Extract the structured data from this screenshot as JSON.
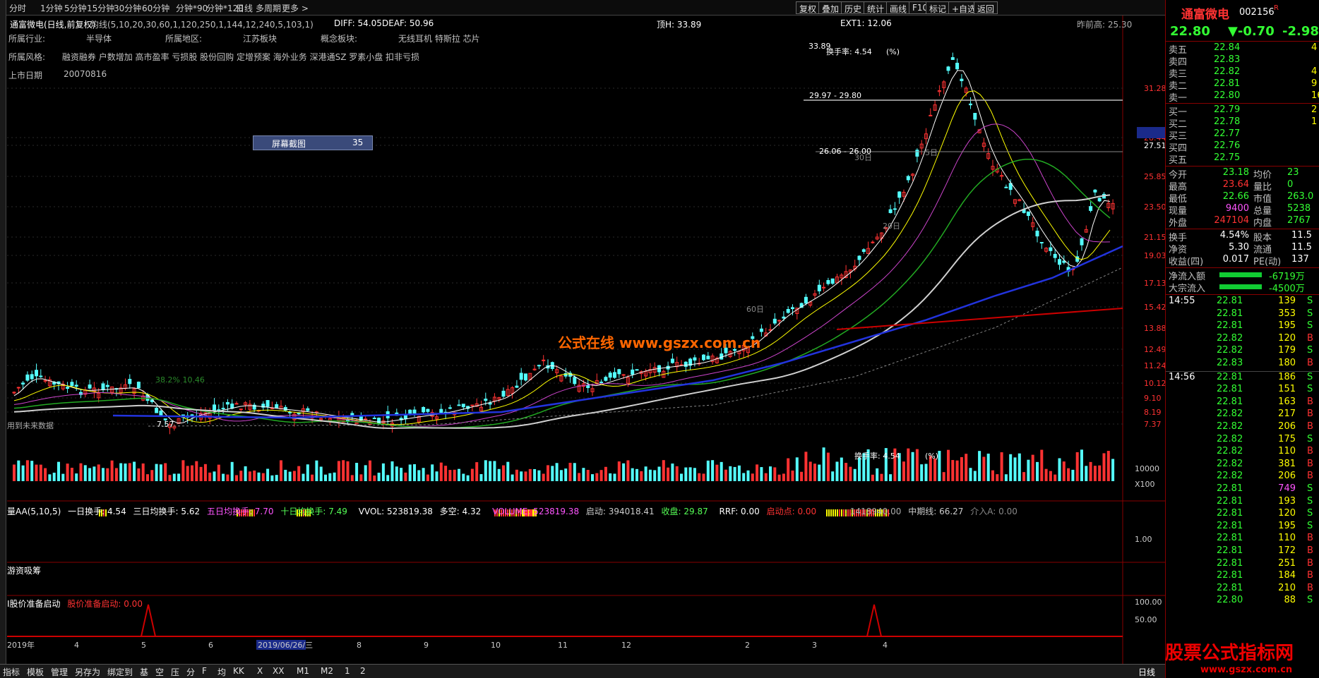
{
  "toolbar": {
    "periods": [
      "分时",
      "1分钟",
      "5分钟",
      "15分钟",
      "30分钟",
      "60分钟",
      "分钟*90",
      "分钟*120",
      "日线",
      "多周期",
      "更多 >"
    ],
    "buttons": [
      "复权",
      "叠加",
      "历史",
      "统计",
      "画线",
      "F10",
      "标记",
      "+自选",
      "返回"
    ]
  },
  "header": {
    "stock_title": "通富微电(日线,前复权)",
    "ma_label": "均线(5,10,20,30,60,1,120,250,1,144,12,240,5,103,1)",
    "diff": "DIFF: 54.05",
    "deaf": "DEAF: 50.96",
    "top_h": "顶H: 33.89",
    "ext1": "EXT1: 12.06",
    "prev_high": "昨前高: 25.30"
  },
  "info": {
    "industry_label": "所属行业:",
    "industry": "半导体",
    "region_label": "所属地区:",
    "region": "江苏板块",
    "concept_label": "概念板块:",
    "concept": "无线耳机 特斯拉 芯片",
    "style_label": "所属风格:",
    "style": "融资融券 户数增加 高市盈率 亏损股 股份回购 定增预案 海外业务 深港通SZ 罗素小盘 扣非亏损",
    "listing_label": "上市日期",
    "listing": "20070816"
  },
  "popup": {
    "label": "屏幕截图",
    "value": "35"
  },
  "watermark": "公式在线  www.gszx.com.cn",
  "price_axis": [
    "31.28",
    "28.44",
    "27.51",
    "25.85",
    "23.50",
    "21.15",
    "19.03",
    "17.13",
    "15.42",
    "13.88",
    "12.49",
    "11.24",
    "10.12",
    "9.10",
    "8.19",
    "7.37"
  ],
  "annotations": {
    "peak": "33.89",
    "turnover": "换手率: 4.54",
    "range1": "29.97 - 29.80",
    "range2": "26.06 - 26.00",
    "low": "7.57",
    "pct": "38.2%  10.46",
    "future": "用到未来数据",
    "d5": "5日",
    "d30": "30日",
    "d60": "60日",
    "d20": "20日"
  },
  "vol_section": {
    "title": "量AA(5,10,5)",
    "one_day": "一日换手: 4.54",
    "three_day": "三日均换手: 5.62",
    "five_day": "五日均换手: 7.70",
    "ten_day": "十日均换手: 7.49",
    "vvol": "VVOL: 523819.38",
    "duokong": "多空: 4.32",
    "volume": "VOLUME: 523819.38",
    "qidong": "启动: 394018.41",
    "shoupan": "收盘: 29.87",
    "rrf": "RRF: 0.00",
    "qidongdian": "启动点: 0.00",
    "axis": [
      "10000",
      "X100"
    ],
    "mid_line": "中期线: 66.27",
    "jieru": "介入A: 0.00",
    "val": ": 1418940.00",
    "turnover": "换手率: 4.54",
    "pct": "(%)"
  },
  "youzi": {
    "title": "游资吸筹",
    "axis": "1.00"
  },
  "prep": {
    "title": "I股价准备启动",
    "sub": "股价准备启动: 0.00",
    "axis": [
      "100.00",
      "50.00"
    ]
  },
  "xaxis": [
    "2019年",
    "4",
    "5",
    "6",
    "2019/06/26/三",
    "8",
    "9",
    "10",
    "11",
    "12",
    "2",
    "3",
    "4"
  ],
  "statusbar": [
    "指标",
    "模板",
    "管理",
    "另存为",
    "绑定到",
    "基",
    "空",
    "压",
    "分",
    "F",
    "均",
    "KK",
    "X",
    "XX",
    "M1",
    "M2",
    "1",
    "2"
  ],
  "daily_label": "日线",
  "right_panel": {
    "name": "通富微电",
    "code": "002156",
    "flag": "R",
    "price": "22.80",
    "change": "▼-0.70",
    "pct": "-2.98",
    "asks": [
      {
        "label": "卖五",
        "price": "22.84",
        "vol": "4"
      },
      {
        "label": "卖四",
        "price": "22.83",
        "vol": ""
      },
      {
        "label": "卖三",
        "price": "22.82",
        "vol": "4"
      },
      {
        "label": "卖二",
        "price": "22.81",
        "vol": "9"
      },
      {
        "label": "卖一",
        "price": "22.80",
        "vol": "16"
      }
    ],
    "bids": [
      {
        "label": "买一",
        "price": "22.79",
        "vol": "2"
      },
      {
        "label": "买二",
        "price": "22.78",
        "vol": "1"
      },
      {
        "label": "买三",
        "price": "22.77",
        "vol": ""
      },
      {
        "label": "买四",
        "price": "22.76",
        "vol": ""
      },
      {
        "label": "买五",
        "price": "22.75",
        "vol": ""
      }
    ],
    "stats": [
      {
        "l1": "今开",
        "v1": "23.18",
        "l2": "均价",
        "v2": "23"
      },
      {
        "l1": "最高",
        "v1": "23.64",
        "l2": "量比",
        "v2": "0"
      },
      {
        "l1": "最低",
        "v1": "22.66",
        "l2": "市值",
        "v2": "263.0"
      },
      {
        "l1": "现量",
        "v1": "9400",
        "l2": "总量",
        "v2": "5238"
      },
      {
        "l1": "外盘",
        "v1": "247104",
        "l2": "内盘",
        "v2": "2767"
      }
    ],
    "stats2": [
      {
        "l1": "换手",
        "v1": "4.54%",
        "l2": "股本",
        "v2": "11.5"
      },
      {
        "l1": "净资",
        "v1": "5.30",
        "l2": "流通",
        "v2": "11.5"
      },
      {
        "l1": "收益(四)",
        "v1": "0.017",
        "l2": "PE(动)",
        "v2": "137"
      }
    ],
    "flows": [
      {
        "label": "净流入额",
        "value": "-6719万"
      },
      {
        "label": "大宗流入",
        "value": "-4500万"
      }
    ],
    "ticks": [
      {
        "time": "14:55",
        "price": "22.81",
        "vol": "139",
        "bs": "S"
      },
      {
        "time": "",
        "price": "22.81",
        "vol": "353",
        "bs": "S"
      },
      {
        "time": "",
        "price": "22.81",
        "vol": "195",
        "bs": "S"
      },
      {
        "time": "",
        "price": "22.82",
        "vol": "120",
        "bs": "B"
      },
      {
        "time": "",
        "price": "22.82",
        "vol": "179",
        "bs": "S"
      },
      {
        "time": "",
        "price": "22.83",
        "vol": "180",
        "bs": "B"
      },
      {
        "time": "14:56",
        "price": "22.81",
        "vol": "186",
        "bs": "S"
      },
      {
        "time": "",
        "price": "22.81",
        "vol": "151",
        "bs": "S"
      },
      {
        "time": "",
        "price": "22.81",
        "vol": "163",
        "bs": "B"
      },
      {
        "time": "",
        "price": "22.82",
        "vol": "217",
        "bs": "B"
      },
      {
        "time": "",
        "price": "22.82",
        "vol": "206",
        "bs": "B"
      },
      {
        "time": "",
        "price": "22.82",
        "vol": "175",
        "bs": "S"
      },
      {
        "time": "",
        "price": "22.82",
        "vol": "110",
        "bs": "B"
      },
      {
        "time": "",
        "price": "22.82",
        "vol": "381",
        "bs": "B"
      },
      {
        "time": "",
        "price": "22.82",
        "vol": "206",
        "bs": "B"
      },
      {
        "time": "",
        "price": "22.81",
        "vol": "749",
        "bs": "S"
      },
      {
        "time": "",
        "price": "22.81",
        "vol": "193",
        "bs": "S"
      },
      {
        "time": "",
        "price": "22.81",
        "vol": "120",
        "bs": "S"
      },
      {
        "time": "",
        "price": "22.81",
        "vol": "195",
        "bs": "S"
      },
      {
        "time": "",
        "price": "22.81",
        "vol": "110",
        "bs": "B"
      },
      {
        "time": "",
        "price": "22.81",
        "vol": "172",
        "bs": "B"
      },
      {
        "time": "",
        "price": "22.81",
        "vol": "251",
        "bs": "B"
      },
      {
        "time": "",
        "price": "22.81",
        "vol": "184",
        "bs": "B"
      },
      {
        "time": "",
        "price": "22.81",
        "vol": "210",
        "bs": "B"
      },
      {
        "time": "",
        "price": "22.80",
        "vol": "88",
        "bs": "S"
      }
    ]
  },
  "brand": "股票公式指标网",
  "brand_url": "www.gszx.com.cn",
  "colors": {
    "up": "#ff3232",
    "down": "#54ffff",
    "accent": "#ffff00"
  }
}
